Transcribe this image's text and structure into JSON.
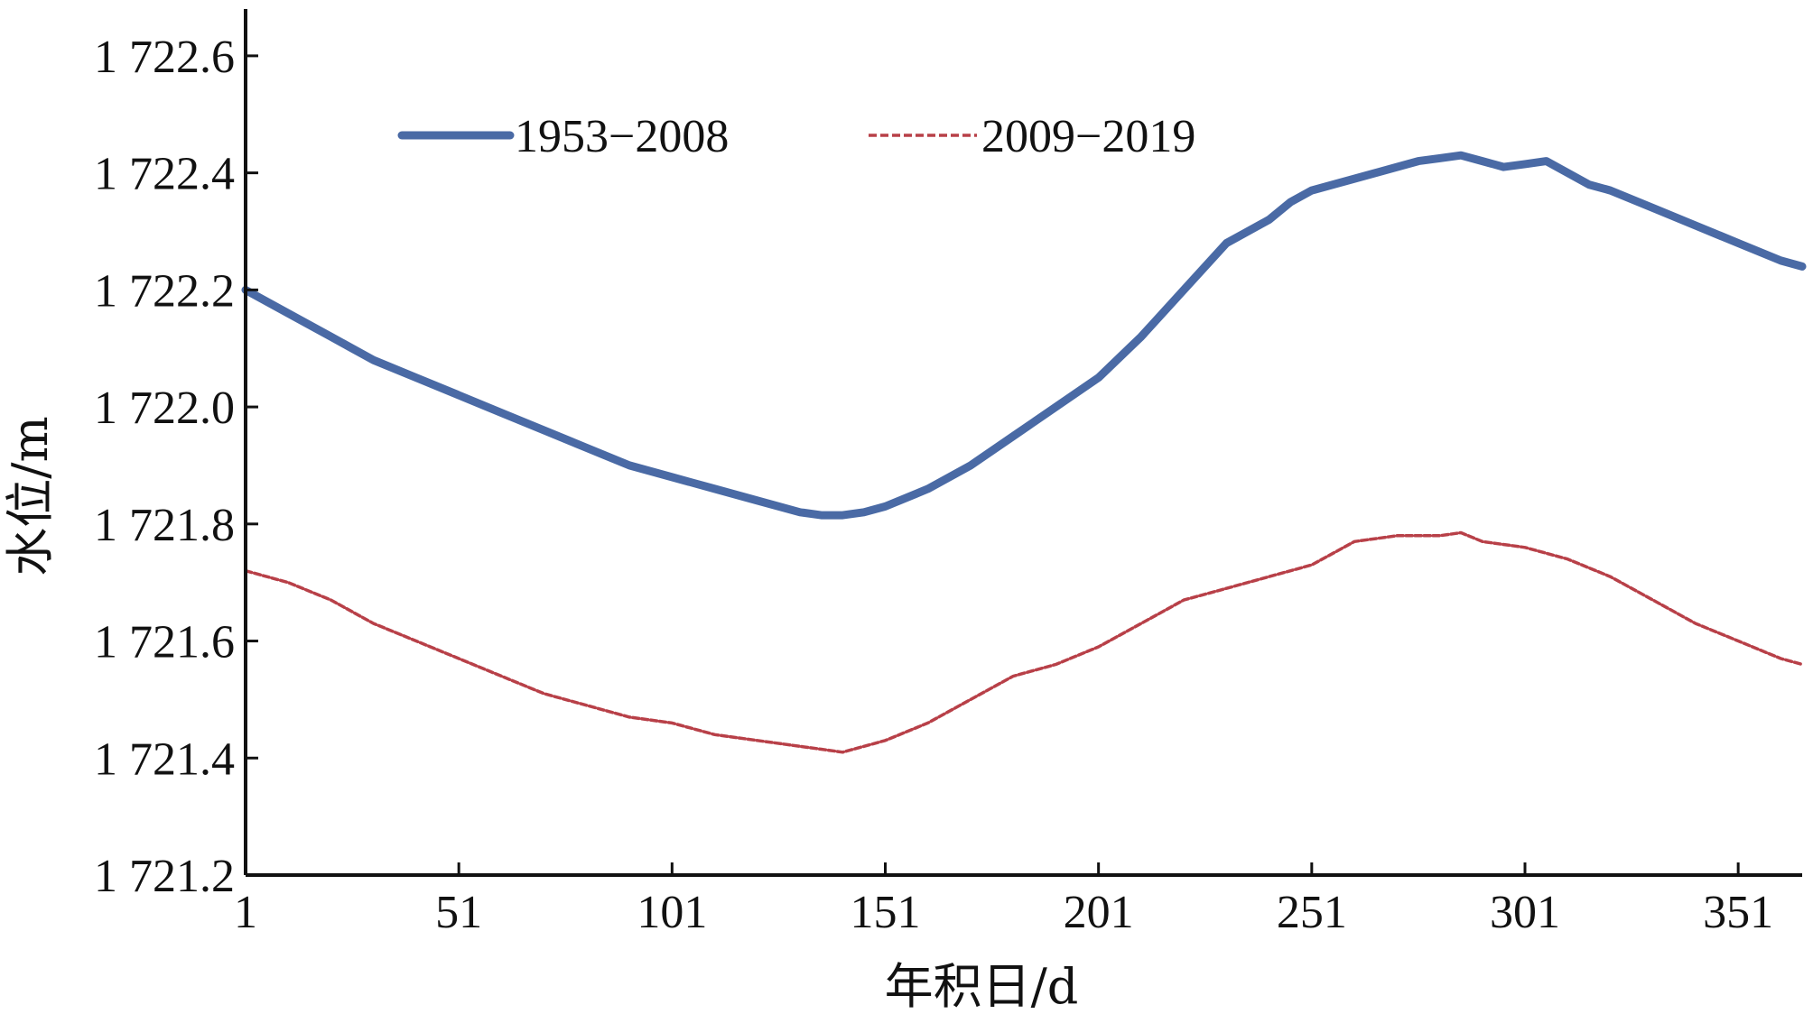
{
  "chart_data": {
    "type": "line",
    "xlabel": "年积日/d",
    "ylabel": "水位/m",
    "xlim": [
      1,
      366
    ],
    "ylim": [
      1721.2,
      1722.68
    ],
    "x_ticks": [
      1,
      51,
      101,
      151,
      201,
      251,
      301,
      351
    ],
    "x_tick_labels": [
      "1",
      "51",
      "101",
      "151",
      "201",
      "251",
      "301",
      "351"
    ],
    "y_ticks": [
      1721.2,
      1721.4,
      1721.6,
      1721.8,
      1722.0,
      1722.2,
      1722.4,
      1722.6
    ],
    "y_tick_labels": [
      "1 721.2",
      "1 721.4",
      "1 721.6",
      "1 721.8",
      "1 722.0",
      "1 722.2",
      "1 722.4",
      "1 722.6"
    ],
    "grid": false,
    "legend_position": "top-center",
    "series": [
      {
        "name": "1953−2008",
        "color": "#4a6aa5",
        "style": "solid-thick",
        "x": [
          1,
          11,
          21,
          31,
          41,
          51,
          61,
          71,
          81,
          91,
          101,
          111,
          121,
          131,
          136,
          141,
          146,
          151,
          161,
          171,
          181,
          191,
          201,
          211,
          221,
          231,
          241,
          246,
          251,
          256,
          261,
          266,
          271,
          276,
          281,
          286,
          291,
          296,
          301,
          306,
          311,
          316,
          321,
          331,
          341,
          351,
          361,
          366
        ],
        "values": [
          1722.2,
          1722.16,
          1722.12,
          1722.08,
          1722.05,
          1722.02,
          1721.99,
          1721.96,
          1721.93,
          1721.9,
          1721.88,
          1721.86,
          1721.84,
          1721.82,
          1721.815,
          1721.815,
          1721.82,
          1721.83,
          1721.86,
          1721.9,
          1721.95,
          1722.0,
          1722.05,
          1722.12,
          1722.2,
          1722.28,
          1722.32,
          1722.35,
          1722.37,
          1722.38,
          1722.39,
          1722.4,
          1722.41,
          1722.42,
          1722.425,
          1722.43,
          1722.42,
          1722.41,
          1722.415,
          1722.42,
          1722.4,
          1722.38,
          1722.37,
          1722.34,
          1722.31,
          1722.28,
          1722.25,
          1722.24
        ]
      },
      {
        "name": "2009−2019",
        "color": "#b84048",
        "style": "dashed",
        "x": [
          1,
          11,
          21,
          31,
          41,
          51,
          61,
          71,
          81,
          91,
          101,
          111,
          121,
          131,
          136,
          141,
          146,
          151,
          161,
          171,
          181,
          191,
          201,
          211,
          221,
          231,
          241,
          251,
          261,
          271,
          281,
          286,
          291,
          301,
          311,
          321,
          331,
          341,
          351,
          361,
          366
        ],
        "values": [
          1721.72,
          1721.7,
          1721.67,
          1721.63,
          1721.6,
          1721.57,
          1721.54,
          1721.51,
          1721.49,
          1721.47,
          1721.46,
          1721.44,
          1721.43,
          1721.42,
          1721.415,
          1721.41,
          1721.42,
          1721.43,
          1721.46,
          1721.5,
          1721.54,
          1721.56,
          1721.59,
          1721.63,
          1721.67,
          1721.69,
          1721.71,
          1721.73,
          1721.77,
          1721.78,
          1721.78,
          1721.785,
          1721.77,
          1721.76,
          1721.74,
          1721.71,
          1721.67,
          1721.63,
          1721.6,
          1721.57,
          1721.56
        ]
      }
    ]
  }
}
